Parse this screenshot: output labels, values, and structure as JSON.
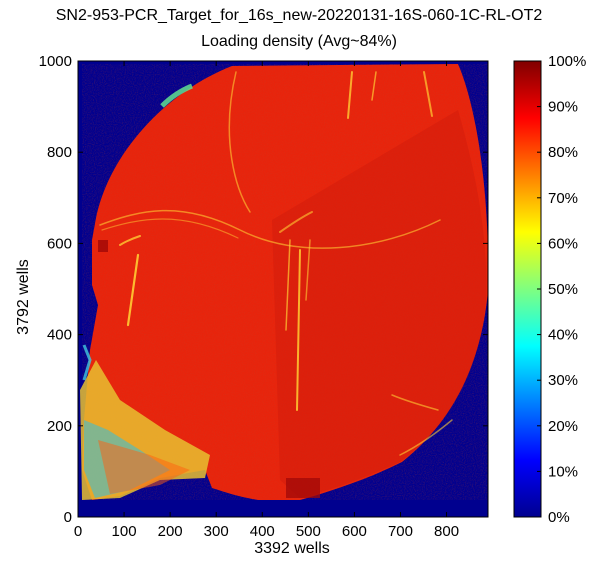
{
  "chart_data": {
    "type": "heatmap",
    "title": "SN2-953-PCR_Target_for_16s_new-20220131-16S-060-1C-RL-OT2",
    "subtitle": "Loading density (Avg~84%)",
    "xlabel": "3392 wells",
    "ylabel": "3792 wells",
    "xlim": [
      0,
      890
    ],
    "ylim": [
      0,
      1000
    ],
    "x_ticks": [
      "0",
      "100",
      "200",
      "300",
      "400",
      "500",
      "600",
      "700",
      "800"
    ],
    "y_ticks": [
      "0",
      "200",
      "400",
      "600",
      "800",
      "1000"
    ],
    "colorbar": {
      "range": [
        0,
        100
      ],
      "unit": "%",
      "tick_labels": [
        "0%",
        "10%",
        "20%",
        "30%",
        "40%",
        "50%",
        "60%",
        "70%",
        "80%",
        "90%",
        "100%"
      ],
      "colormap": "jet"
    },
    "average_loading_percent": 84,
    "background_value_percent": 0,
    "typical_value_percent": 93,
    "colors": {
      "background": "#00008f",
      "loaded": "#e8240c",
      "dark_loaded": "#c0140a",
      "streak": "#ffd030",
      "edge": "#40e0a0"
    }
  }
}
